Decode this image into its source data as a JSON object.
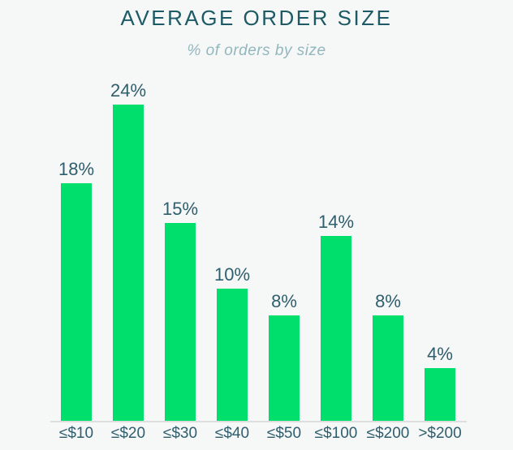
{
  "page": {
    "background": "#F6F7F7"
  },
  "chart_data": {
    "type": "bar",
    "title": "AVERAGE ORDER SIZE",
    "subtitle": "% of orders by size",
    "categories": [
      "≤$10",
      "≤$20",
      "≤$30",
      "≤$40",
      "≤$50",
      "≤$100",
      "≤$200",
      ">$200"
    ],
    "values": [
      18,
      24,
      15,
      10,
      8,
      14,
      8,
      4
    ],
    "value_labels": [
      "18%",
      "24%",
      "15%",
      "10%",
      "8%",
      "14%",
      "8%",
      "4%"
    ],
    "unit": "%",
    "xlabel": "",
    "ylabel": "",
    "ylim": [
      0,
      24
    ],
    "grid": false,
    "legend": false,
    "colors": {
      "bar": "#00DE6C",
      "title": "#1D5A66",
      "subtitle": "#92B7BE",
      "label": "#2F5E6D",
      "axis_line": "#DDDFDF",
      "background": "#F6F7F7"
    }
  }
}
